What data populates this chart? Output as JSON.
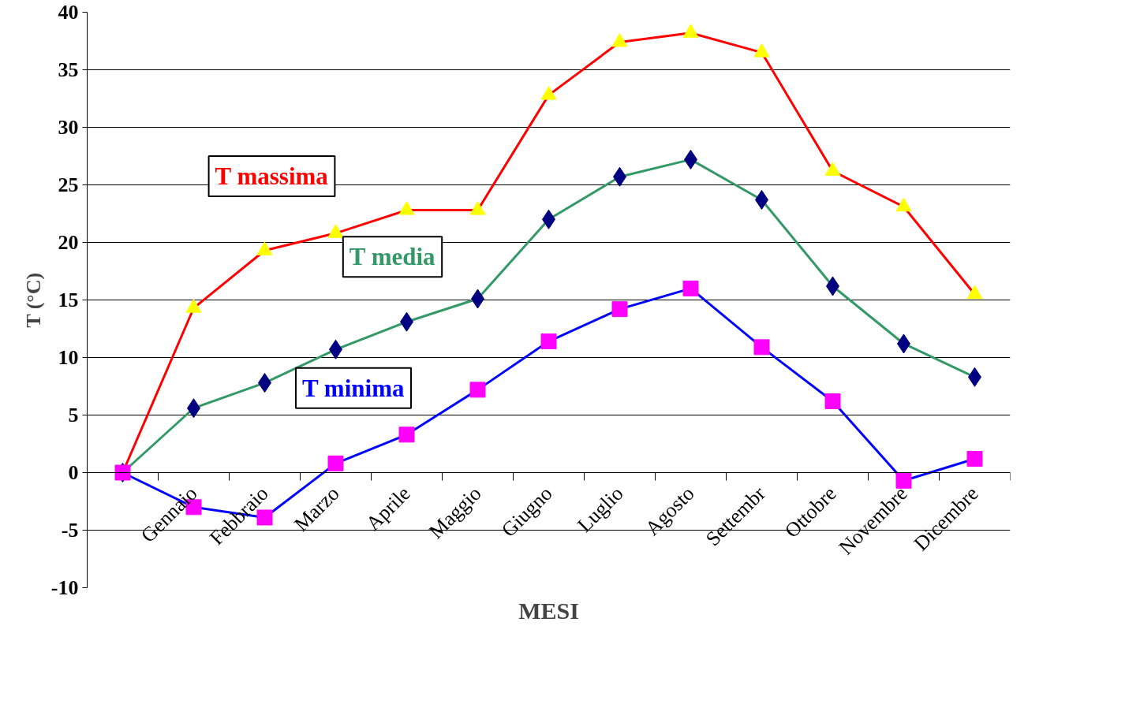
{
  "chart_data": {
    "type": "line",
    "xlabel": "MESI",
    "ylabel": "T (°C)",
    "categories": [
      null,
      "Gennaio",
      "Febbraio",
      "Marzo",
      "Aprile",
      "Maggio",
      "Giugno",
      "Luglio",
      "Agosto",
      "Settembr",
      "Ottobre",
      "Novembre",
      "Dicembre"
    ],
    "series": [
      {
        "name": "T massima",
        "color": "#ff0000",
        "marker": "triangle",
        "colors": [
          "#ffff00",
          "#ffff00",
          "#ffff00",
          "#ffff00",
          "#ffff00",
          "#ffff00",
          "#ffff00",
          "#ffff00",
          "#ffff00",
          "#ffff00",
          "#ffff00",
          "#ffff00",
          "#ffff00"
        ],
        "values": [
          0,
          14.3,
          19.3,
          20.8,
          22.8,
          22.8,
          32.8,
          37.4,
          38.2,
          36.5,
          26.2,
          23.1,
          15.5
        ]
      },
      {
        "name": "T media",
        "color": "#339966",
        "marker": "diamond",
        "colors": [
          "#000080",
          "#000080",
          "#000080",
          "#000080",
          "#000080",
          "#000080",
          "#000080",
          "#000080",
          "#000080",
          "#000080",
          "#000080",
          "#000080",
          "#000080"
        ],
        "values": [
          0,
          5.6,
          7.8,
          10.7,
          13.1,
          15.1,
          22.0,
          25.7,
          27.2,
          23.7,
          16.2,
          11.2,
          8.3
        ]
      },
      {
        "name": "T minima",
        "color": "#0000ff",
        "marker": "square",
        "colors": [
          "#ff00ff",
          "#ff00ff",
          "#ff00ff",
          "#ff00ff",
          "#ff00ff",
          "#ff00ff",
          "#ff00ff",
          "#ff00ff",
          "#ff00ff",
          "#ff00ff",
          "#ff00ff",
          "#ff00ff",
          "#ff00ff"
        ],
        "values": [
          0,
          -3.0,
          -3.9,
          0.8,
          3.3,
          7.2,
          11.4,
          14.2,
          16.0,
          10.9,
          6.2,
          -0.7,
          1.2
        ]
      }
    ],
    "ylim": [
      -10,
      40
    ],
    "yticks": [
      -10,
      -5,
      0,
      5,
      10,
      15,
      20,
      25,
      30,
      35,
      40
    ],
    "grid": "y",
    "line_style": "solid"
  }
}
